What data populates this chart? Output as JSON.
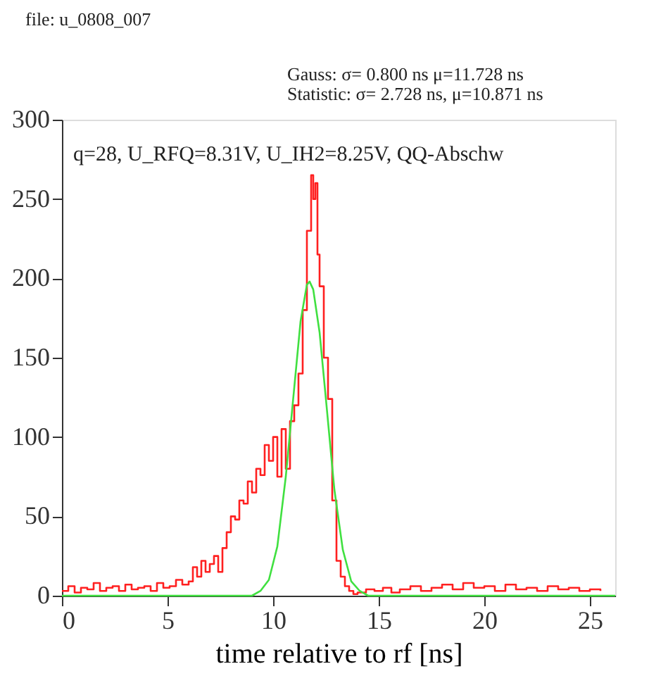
{
  "chart_data": {
    "type": "line",
    "title": "file: u_0808_007",
    "xlabel": "time relative to rf [ns]",
    "annotations": [
      "Gauss: σ= 0.800 ns μ=11.728 ns",
      "Statistic: σ= 2.728 ns, μ=10.871 ns",
      "q=28, U_RFQ=8.31V, U_IH2=8.25V, QQ-Abschw"
    ],
    "series": [
      {
        "type": "step",
        "color": "#ff2020",
        "x": [
          0,
          0.3,
          0.6,
          0.9,
          1.2,
          1.5,
          1.8,
          2.1,
          2.4,
          2.7,
          3.0,
          3.3,
          3.6,
          3.9,
          4.2,
          4.5,
          4.8,
          5.1,
          5.4,
          5.7,
          6.0,
          6.2,
          6.4,
          6.6,
          6.8,
          7.0,
          7.2,
          7.4,
          7.6,
          7.8,
          8.0,
          8.2,
          8.4,
          8.6,
          8.8,
          9.0,
          9.2,
          9.4,
          9.6,
          9.8,
          10.0,
          10.2,
          10.4,
          10.6,
          10.8,
          11.0,
          11.2,
          11.4,
          11.6,
          11.8,
          11.9,
          12.0,
          12.1,
          12.2,
          12.4,
          12.6,
          12.8,
          13.0,
          13.2,
          13.4,
          13.6,
          13.8,
          14.0,
          14.4,
          14.8,
          15.2,
          15.6,
          16.0,
          16.5,
          17.0,
          17.5,
          18.0,
          18.5,
          19.0,
          19.5,
          20.0,
          20.5,
          21.0,
          21.5,
          22.0,
          22.5,
          23.0,
          23.5,
          24.0,
          24.5,
          25.0,
          25.5
        ],
        "values": [
          3,
          6,
          2,
          5,
          4,
          8,
          3,
          5,
          6,
          3,
          7,
          4,
          5,
          6,
          3,
          8,
          5,
          6,
          10,
          7,
          9,
          18,
          12,
          22,
          15,
          20,
          25,
          15,
          30,
          40,
          50,
          48,
          60,
          58,
          72,
          65,
          80,
          76,
          95,
          85,
          100,
          75,
          105,
          80,
          110,
          120,
          140,
          180,
          230,
          265,
          250,
          260,
          215,
          195,
          150,
          124,
          60,
          22,
          12,
          6,
          3,
          1,
          2,
          4,
          3,
          5,
          2,
          4,
          6,
          3,
          5,
          7,
          4,
          8,
          5,
          6,
          3,
          7,
          4,
          5,
          3,
          6,
          4,
          5,
          3,
          4,
          3
        ]
      },
      {
        "type": "line",
        "color": "#40e040",
        "x": [
          0,
          9.0,
          9.4,
          9.8,
          10.2,
          10.6,
          11.0,
          11.3,
          11.6,
          11.728,
          11.9,
          12.2,
          12.5,
          12.9,
          13.3,
          13.7,
          14.1,
          14.5,
          26.2
        ],
        "values": [
          0,
          0,
          3,
          10,
          31,
          75,
          131,
          173,
          196,
          198,
          193,
          166,
          124,
          67,
          29,
          9,
          3,
          0,
          0
        ]
      }
    ],
    "xlim": [
      0,
      26.2
    ],
    "ylim": [
      0,
      300
    ],
    "xticks": [
      0,
      5,
      10,
      15,
      20,
      25
    ],
    "yticks": [
      0,
      50,
      100,
      150,
      200,
      250,
      300
    ],
    "grid": false,
    "marker": "none",
    "line_style": "solid"
  }
}
